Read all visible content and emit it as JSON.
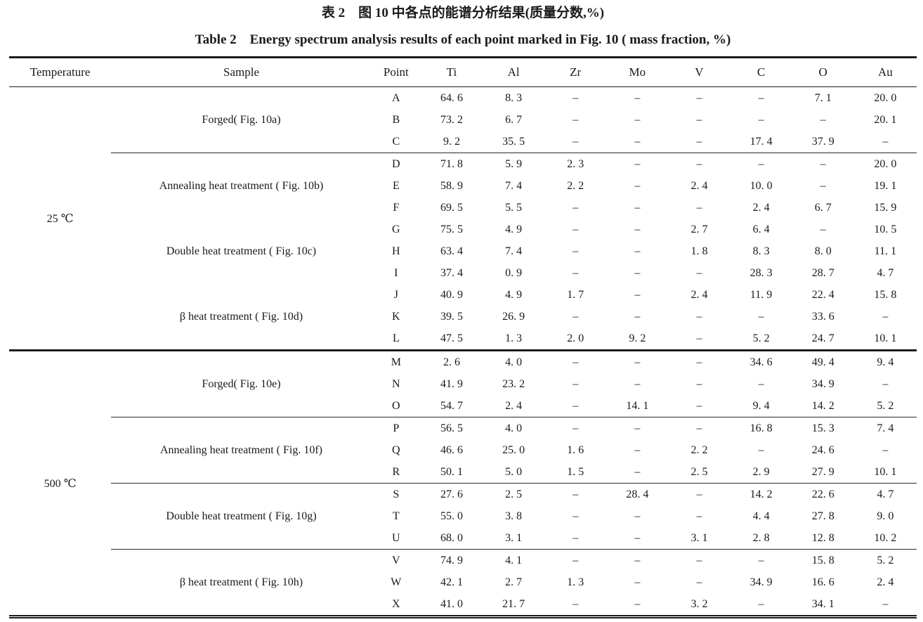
{
  "titles": {
    "zh": "表 2　图 10 中各点的能谱分析结果(质量分数,%)",
    "en": "Table 2　Energy spectrum analysis results of each point marked in Fig. 10 ( mass fraction, %)"
  },
  "table": {
    "columns": [
      "Temperature",
      "Sample",
      "Point",
      "Ti",
      "Al",
      "Zr",
      "Mo",
      "V",
      "C",
      "O",
      "Au"
    ],
    "dash": "–",
    "blocks": [
      {
        "temperature": "25 ℃",
        "groups": [
          {
            "sample": "Forged( Fig. 10a)",
            "sep": false,
            "rows": [
              {
                "point": "A",
                "values": [
                  "64. 6",
                  "8. 3",
                  "–",
                  "–",
                  "–",
                  "–",
                  "7. 1",
                  "20. 0"
                ]
              },
              {
                "point": "B",
                "values": [
                  "73. 2",
                  "6. 7",
                  "–",
                  "–",
                  "–",
                  "–",
                  "–",
                  "20. 1"
                ]
              },
              {
                "point": "C",
                "values": [
                  "9. 2",
                  "35. 5",
                  "–",
                  "–",
                  "–",
                  "17. 4",
                  "37. 9",
                  "–"
                ]
              }
            ]
          },
          {
            "sample": "Annealing heat treatment ( Fig. 10b)",
            "sep": true,
            "rows": [
              {
                "point": "D",
                "values": [
                  "71. 8",
                  "5. 9",
                  "2. 3",
                  "–",
                  "–",
                  "–",
                  "–",
                  "20. 0"
                ]
              },
              {
                "point": "E",
                "values": [
                  "58. 9",
                  "7. 4",
                  "2. 2",
                  "–",
                  "2. 4",
                  "10. 0",
                  "–",
                  "19. 1"
                ]
              },
              {
                "point": "F",
                "values": [
                  "69. 5",
                  "5. 5",
                  "–",
                  "–",
                  "–",
                  "2. 4",
                  "6. 7",
                  "15. 9"
                ]
              }
            ]
          },
          {
            "sample": "Double heat treatment ( Fig. 10c)",
            "sep": false,
            "rows": [
              {
                "point": "G",
                "values": [
                  "75. 5",
                  "4. 9",
                  "–",
                  "–",
                  "2. 7",
                  "6. 4",
                  "–",
                  "10. 5"
                ]
              },
              {
                "point": "H",
                "values": [
                  "63. 4",
                  "7. 4",
                  "–",
                  "–",
                  "1. 8",
                  "8. 3",
                  "8. 0",
                  "11. 1"
                ]
              },
              {
                "point": "I",
                "values": [
                  "37. 4",
                  "0. 9",
                  "–",
                  "–",
                  "–",
                  "28. 3",
                  "28. 7",
                  "4. 7"
                ]
              }
            ]
          },
          {
            "sample": "β heat treatment ( Fig. 10d)",
            "sep": false,
            "rows": [
              {
                "point": "J",
                "values": [
                  "40. 9",
                  "4. 9",
                  "1. 7",
                  "–",
                  "2. 4",
                  "11. 9",
                  "22. 4",
                  "15. 8"
                ]
              },
              {
                "point": "K",
                "values": [
                  "39. 5",
                  "26. 9",
                  "–",
                  "–",
                  "–",
                  "–",
                  "33. 6",
                  "–"
                ]
              },
              {
                "point": "L",
                "values": [
                  "47. 5",
                  "1. 3",
                  "2. 0",
                  "9. 2",
                  "–",
                  "5. 2",
                  "24. 7",
                  "10. 1"
                ]
              }
            ]
          }
        ]
      },
      {
        "temperature": "500 ℃",
        "groups": [
          {
            "sample": "Forged( Fig. 10e)",
            "sep": false,
            "rows": [
              {
                "point": "M",
                "values": [
                  "2. 6",
                  "4. 0",
                  "–",
                  "–",
                  "–",
                  "34. 6",
                  "49. 4",
                  "9. 4"
                ]
              },
              {
                "point": "N",
                "values": [
                  "41. 9",
                  "23. 2",
                  "–",
                  "–",
                  "–",
                  "–",
                  "34. 9",
                  "–"
                ]
              },
              {
                "point": "O",
                "values": [
                  "54. 7",
                  "2. 4",
                  "–",
                  "14. 1",
                  "–",
                  "9. 4",
                  "14. 2",
                  "5. 2"
                ]
              }
            ]
          },
          {
            "sample": "Annealing heat treatment ( Fig. 10f)",
            "sep": true,
            "rows": [
              {
                "point": "P",
                "values": [
                  "56. 5",
                  "4. 0",
                  "–",
                  "–",
                  "–",
                  "16. 8",
                  "15. 3",
                  "7. 4"
                ]
              },
              {
                "point": "Q",
                "values": [
                  "46. 6",
                  "25. 0",
                  "1. 6",
                  "–",
                  "2. 2",
                  "–",
                  "24. 6",
                  "–"
                ]
              },
              {
                "point": "R",
                "values": [
                  "50. 1",
                  "5. 0",
                  "1. 5",
                  "–",
                  "2. 5",
                  "2. 9",
                  "27. 9",
                  "10. 1"
                ]
              }
            ]
          },
          {
            "sample": "Double heat treatment ( Fig. 10g)",
            "sep": true,
            "rows": [
              {
                "point": "S",
                "values": [
                  "27. 6",
                  "2. 5",
                  "–",
                  "28. 4",
                  "–",
                  "14. 2",
                  "22. 6",
                  "4. 7"
                ]
              },
              {
                "point": "T",
                "values": [
                  "55. 0",
                  "3. 8",
                  "–",
                  "–",
                  "–",
                  "4. 4",
                  "27. 8",
                  "9. 0"
                ]
              },
              {
                "point": "U",
                "values": [
                  "68. 0",
                  "3. 1",
                  "–",
                  "–",
                  "3. 1",
                  "2. 8",
                  "12. 8",
                  "10. 2"
                ]
              }
            ]
          },
          {
            "sample": "β heat treatment ( Fig. 10h)",
            "sep": true,
            "rows": [
              {
                "point": "V",
                "values": [
                  "74. 9",
                  "4. 1",
                  "–",
                  "–",
                  "–",
                  "–",
                  "15. 8",
                  "5. 2"
                ]
              },
              {
                "point": "W",
                "values": [
                  "42. 1",
                  "2. 7",
                  "1. 3",
                  "–",
                  "–",
                  "34. 9",
                  "16. 6",
                  "2. 4"
                ]
              },
              {
                "point": "X",
                "values": [
                  "41. 0",
                  "21. 7",
                  "–",
                  "–",
                  "3. 2",
                  "–",
                  "34. 1",
                  "–"
                ]
              }
            ]
          }
        ]
      }
    ]
  }
}
